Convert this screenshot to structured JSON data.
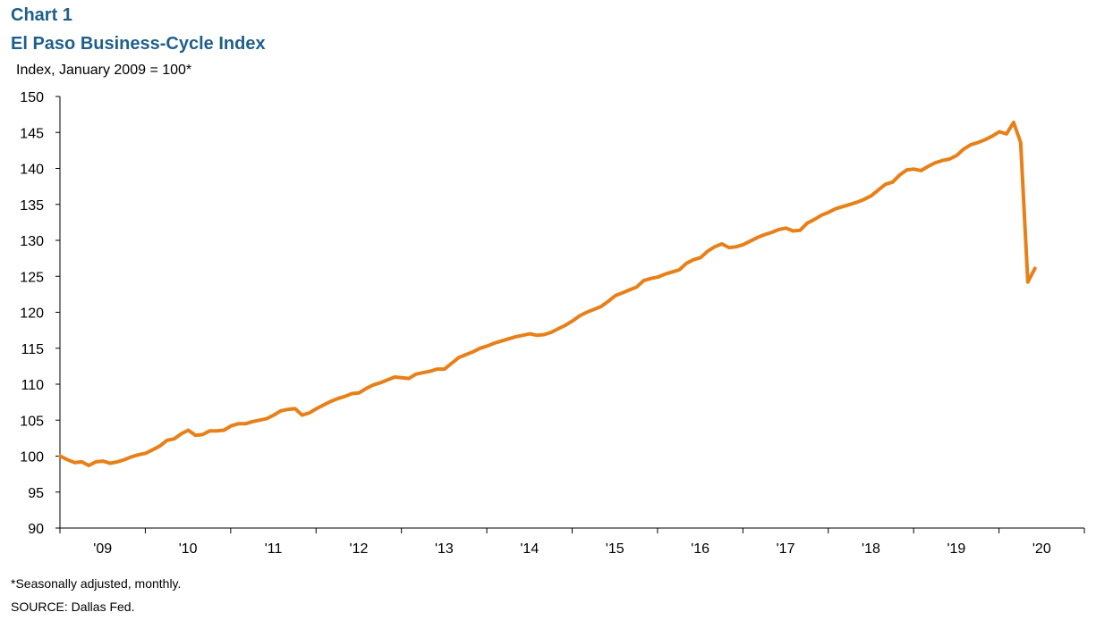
{
  "header": {
    "chart_label": "Chart 1",
    "title": "El Paso Business-Cycle Index"
  },
  "footer": {
    "footnote": "*Seasonally adjusted, monthly.",
    "source": "SOURCE:  Dallas Fed."
  },
  "colors": {
    "line": "#e8801a",
    "axis": "#000000",
    "title": "#1f5f8b"
  },
  "chart_data": {
    "type": "line",
    "title": "El Paso Business-Cycle Index",
    "ylabel": "Index, January 2009 = 100*",
    "xlabel": "",
    "ylim": [
      90,
      150
    ],
    "yticks": [
      90,
      95,
      100,
      105,
      110,
      115,
      120,
      125,
      130,
      135,
      140,
      145,
      150
    ],
    "xlim": [
      "2009-01",
      "2020-12"
    ],
    "year_labels": [
      "'09",
      "'10",
      "'11",
      "'12",
      "'13",
      "'14",
      "'15",
      "'16",
      "'17",
      "'18",
      "'19",
      "'20"
    ],
    "grid": false,
    "legend": "none",
    "series": [
      {
        "start": "2009-01",
        "frequency": "monthly",
        "values": [
          100.0,
          99.5,
          99.1,
          99.2,
          98.7,
          99.2,
          99.3,
          99.0,
          99.2,
          99.5,
          99.9,
          100.2,
          100.4,
          100.9,
          101.4,
          102.2,
          102.4,
          103.1,
          103.6,
          102.9,
          103.0,
          103.5,
          103.5,
          103.6,
          104.2,
          104.5,
          104.5,
          104.8,
          105.0,
          105.2,
          105.7,
          106.3,
          106.5,
          106.6,
          105.7,
          106.0,
          106.6,
          107.1,
          107.6,
          108.0,
          108.3,
          108.7,
          108.8,
          109.4,
          109.9,
          110.2,
          110.6,
          111.0,
          110.9,
          110.8,
          111.4,
          111.6,
          111.8,
          112.1,
          112.1,
          112.9,
          113.7,
          114.1,
          114.5,
          115.0,
          115.3,
          115.7,
          116.0,
          116.3,
          116.6,
          116.8,
          117.0,
          116.8,
          116.9,
          117.2,
          117.7,
          118.2,
          118.8,
          119.5,
          120.0,
          120.4,
          120.8,
          121.5,
          122.3,
          122.7,
          123.1,
          123.5,
          124.4,
          124.7,
          124.9,
          125.3,
          125.6,
          125.9,
          126.8,
          127.3,
          127.6,
          128.5,
          129.1,
          129.5,
          129.0,
          129.1,
          129.4,
          129.9,
          130.4,
          130.8,
          131.1,
          131.5,
          131.7,
          131.3,
          131.4,
          132.4,
          132.9,
          133.5,
          133.9,
          134.4,
          134.7,
          135.0,
          135.3,
          135.7,
          136.2,
          137.0,
          137.8,
          138.1,
          139.1,
          139.8,
          139.9,
          139.7,
          140.3,
          140.8,
          141.1,
          141.3,
          141.8,
          142.7,
          143.3,
          143.6,
          144.0,
          144.5,
          145.1,
          144.8,
          146.4,
          143.6,
          124.2,
          126.1
        ]
      }
    ]
  }
}
